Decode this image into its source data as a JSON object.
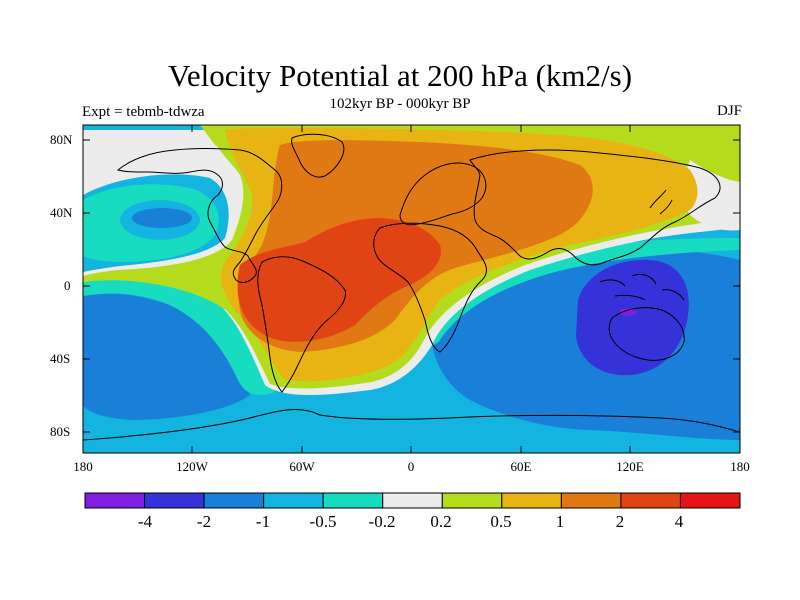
{
  "title": "Velocity Potential at 200 hPa (km2/s)",
  "subtitle": "102kyr BP - 000kyr BP",
  "experiment_label": "Expt = tebmb-tdwza",
  "season_label": "DJF",
  "latitude_ticks": [
    "80N",
    "40N",
    "0",
    "40S",
    "80S"
  ],
  "longitude_ticks": [
    "180",
    "120W",
    "60W",
    "0",
    "60E",
    "120E",
    "180"
  ],
  "colorbar": {
    "labels": [
      "-4",
      "-2",
      "-1",
      "-0.5",
      "-0.2",
      "0.2",
      "0.5",
      "1",
      "2",
      "4"
    ],
    "colors": [
      "#7f1fe0",
      "#3432d8",
      "#1a7fd8",
      "#14b4e0",
      "#18dcc0",
      "#ececec",
      "#b4dc1c",
      "#e8b414",
      "#e07814",
      "#e04414",
      "#e61414"
    ]
  },
  "palette": {
    "ocean_base": "#14b4e0",
    "deep_blue": "#1a7fd8",
    "indigo": "#3432d8",
    "purple": "#7f1fe0",
    "teal": "#18dcc0",
    "white_band": "#ececec",
    "lime": "#b4dc1c",
    "gold": "#e8b414",
    "orange": "#e07814",
    "red_orange": "#e04414",
    "coast": "#000000"
  }
}
